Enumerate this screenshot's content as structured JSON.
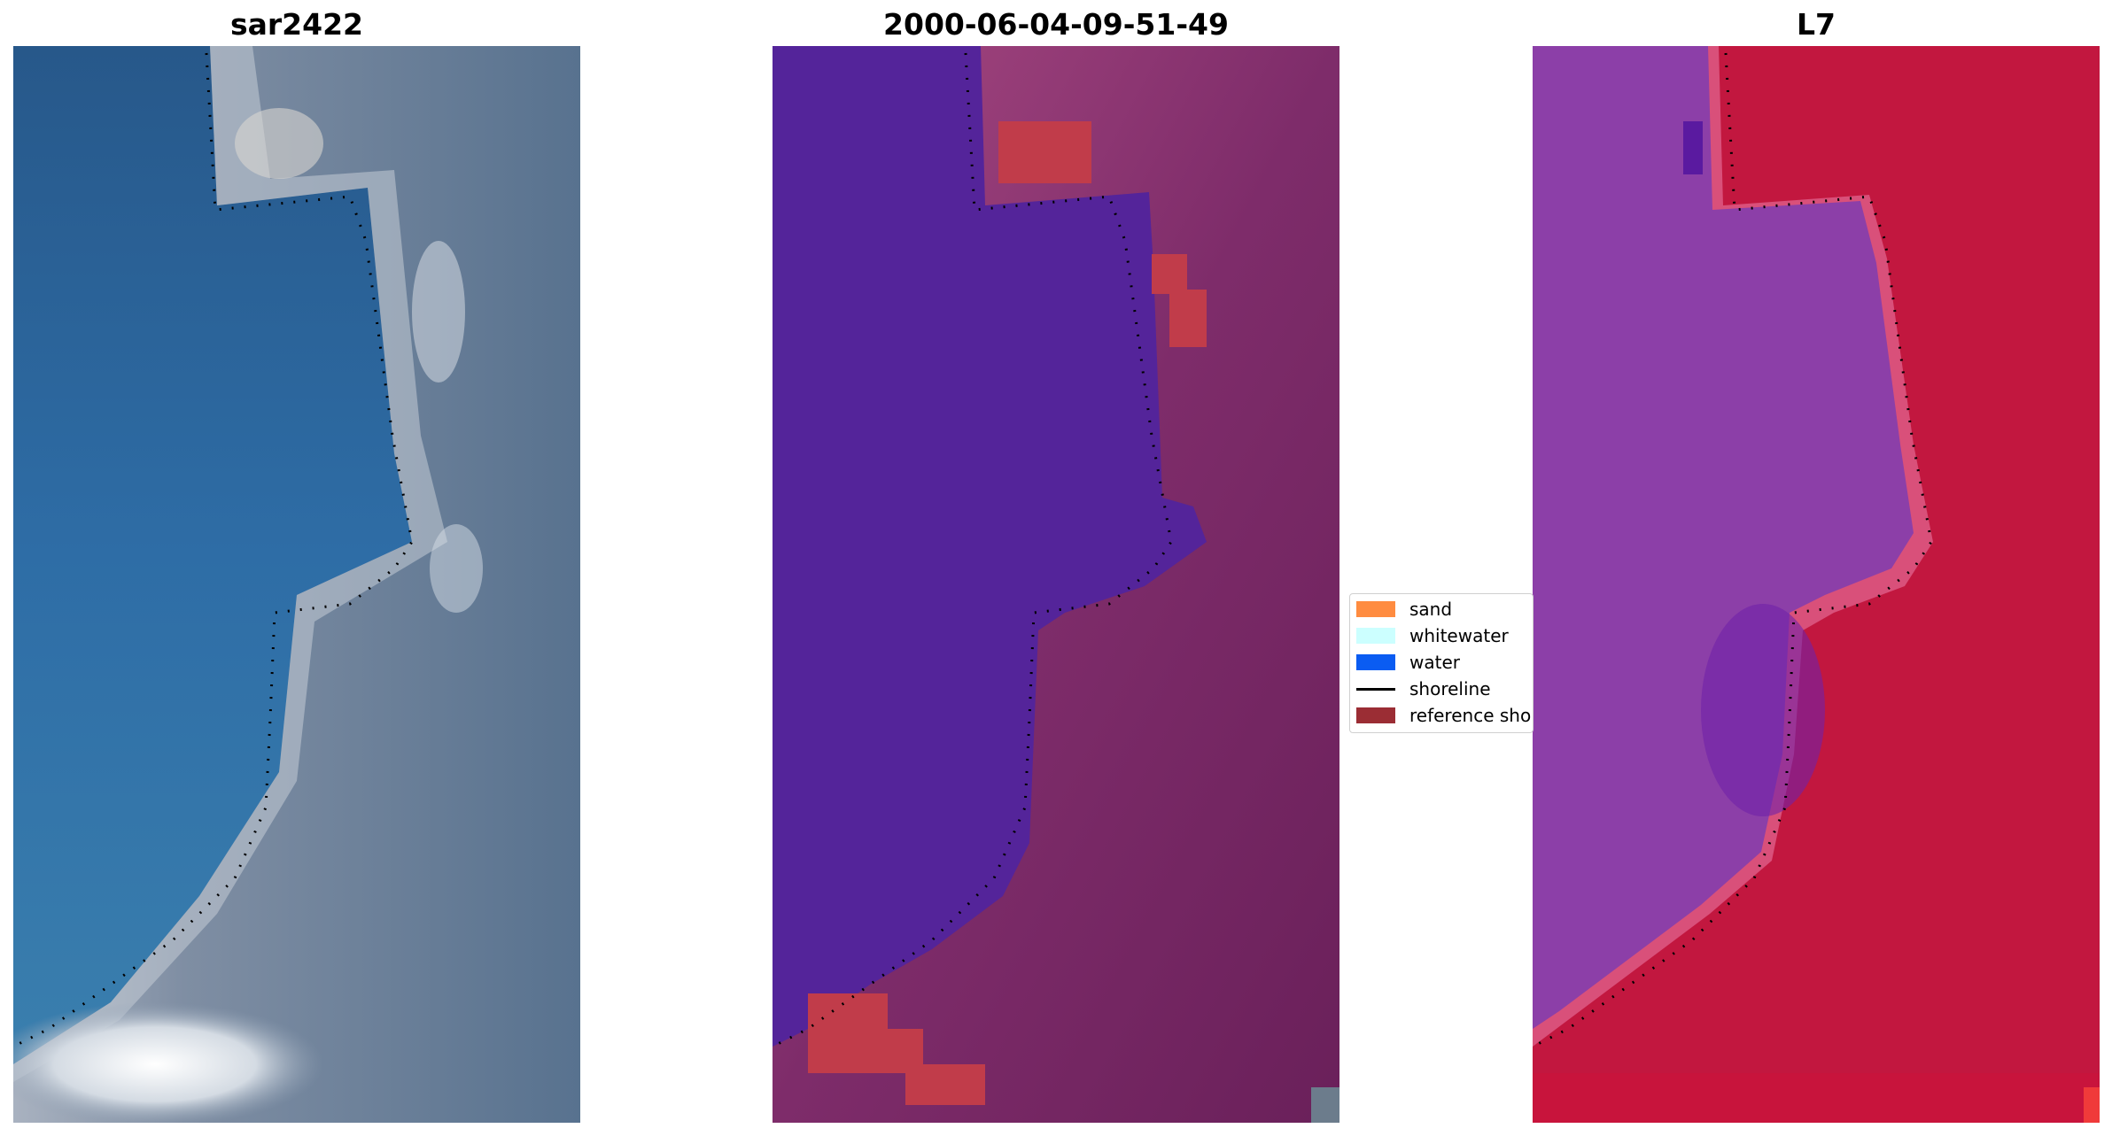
{
  "panels": [
    {
      "id": "rgb",
      "title": "sar2422"
    },
    {
      "id": "classified",
      "title": "2000-06-04-09-51-49"
    },
    {
      "id": "index",
      "title": "L7"
    }
  ],
  "legend": {
    "placement": "between-panels-right-middle",
    "items": [
      {
        "label": "sand",
        "color": "#ff8c40",
        "kind": "patch"
      },
      {
        "label": "whitewater",
        "color": "#ccffff",
        "kind": "patch"
      },
      {
        "label": "water",
        "color": "#0a5cf2",
        "kind": "patch"
      },
      {
        "label": "shoreline",
        "color": "#000000",
        "kind": "line"
      },
      {
        "label": "reference sho",
        "color": "#9b2d34",
        "kind": "patch"
      }
    ]
  },
  "colors": {
    "rgb_water": "#2f6a9f",
    "rgb_land": "#5f7a94",
    "rgb_surf": "#d9e2ea",
    "classified_water": "#54249a",
    "classified_land": "#7e2c6a",
    "classified_sand": "#c13c4a",
    "index_water": "#8c3fa8",
    "index_land": "#c2173f",
    "index_edge": "#d9507a"
  }
}
